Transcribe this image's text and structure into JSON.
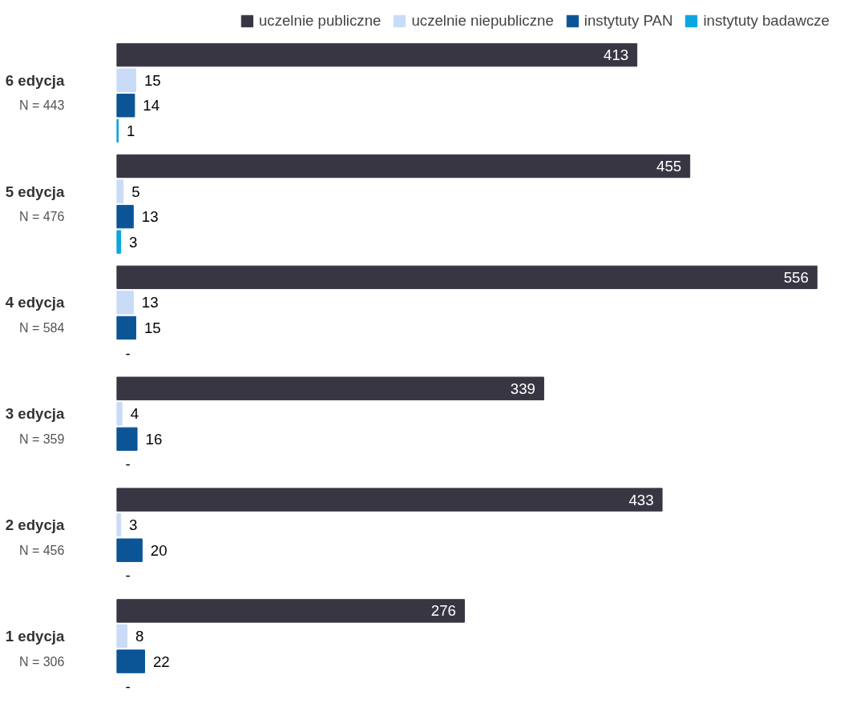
{
  "chart_data": {
    "type": "bar",
    "orientation": "horizontal",
    "legend": "top",
    "grid": false,
    "categories": [
      "6 edycja\nN = 443",
      "5 edycja\nN = 476",
      "4 edycja\nN = 584",
      "3 edycja\nN = 359",
      "2 edycja\nN = 456",
      "1 edycja\nN = 306"
    ],
    "series": [
      {
        "name": "uczelnie publiczne",
        "color": "#393644",
        "values": [
          413,
          455,
          556,
          339,
          433,
          276
        ],
        "value_labels": [
          "413",
          "455",
          "556",
          "339",
          "433",
          "276"
        ]
      },
      {
        "name": "uczelnie niepubliczne",
        "color": "#c9dbf6",
        "values": [
          15,
          5,
          13,
          4,
          3,
          8
        ],
        "value_labels": [
          "15",
          "5",
          "13",
          "4",
          "3",
          "8"
        ]
      },
      {
        "name": "instytuty PAN",
        "color": "#0b5596",
        "values": [
          14,
          13,
          15,
          16,
          20,
          22
        ],
        "value_labels": [
          "14",
          "13",
          "15",
          "16",
          "20",
          "22"
        ]
      },
      {
        "name": "instytuty badawcze",
        "color": "#0aa6e0",
        "values": [
          1,
          3,
          null,
          null,
          null,
          null
        ],
        "value_labels": [
          "1",
          "3",
          "-",
          "-",
          "-",
          "-"
        ]
      }
    ]
  }
}
